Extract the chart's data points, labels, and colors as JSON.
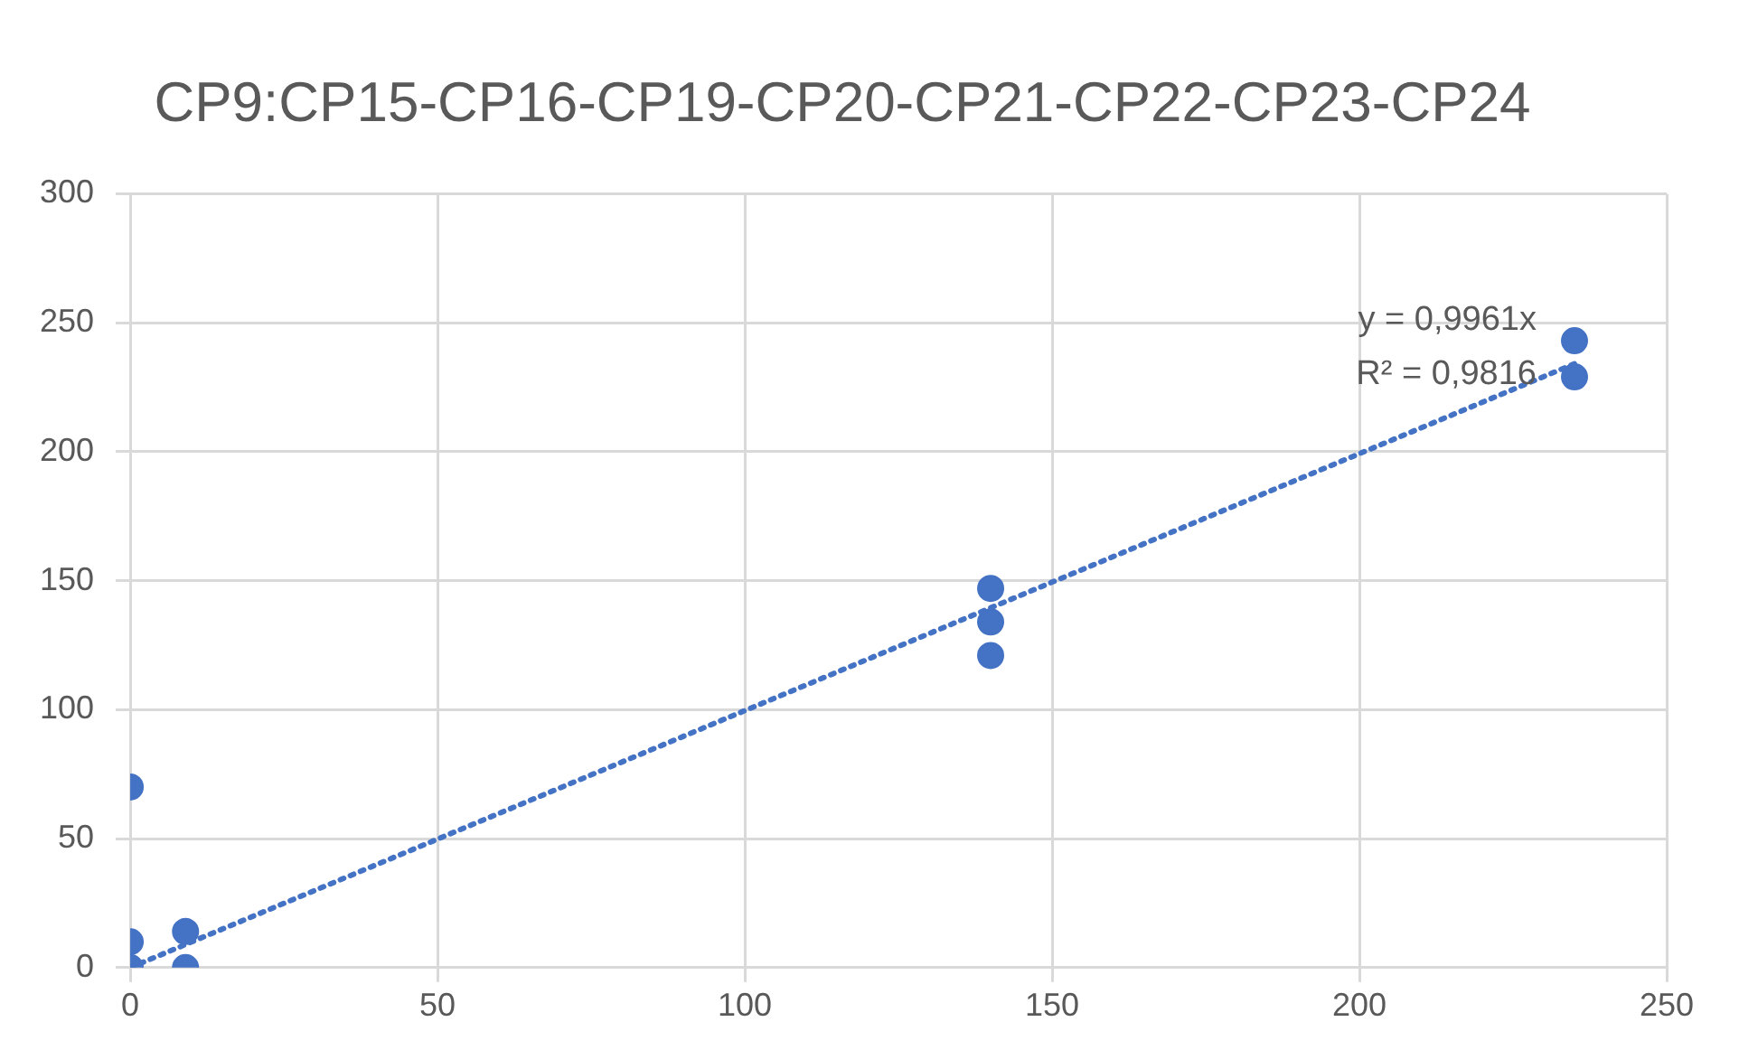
{
  "chart_data": {
    "type": "scatter",
    "title": "CP9:CP15-CP16-CP19-CP20-CP21-CP22-CP23-CP24",
    "xlim": [
      0,
      250
    ],
    "xticks": [
      0,
      50,
      100,
      150,
      200,
      250
    ],
    "ylim": [
      0,
      300
    ],
    "yticks": [
      0,
      50,
      100,
      150,
      200,
      250,
      300
    ],
    "grid": true,
    "legend": false,
    "marker": "circle",
    "series": [
      {
        "color": "#4472c4",
        "x": [
          0,
          0,
          0,
          9,
          9,
          140,
          140,
          140,
          235,
          235
        ],
        "values": [
          0,
          10,
          70,
          0,
          14,
          121,
          134,
          147,
          229,
          243
        ]
      },
      {
        "type": "line",
        "color": "#4472c4",
        "line_style": "dotted",
        "marker": "none",
        "x": [
          0,
          235
        ],
        "values": [
          0,
          234.1
        ]
      }
    ],
    "annotations": [
      "y = 0,9961x",
      "R² = 0,9816"
    ]
  }
}
